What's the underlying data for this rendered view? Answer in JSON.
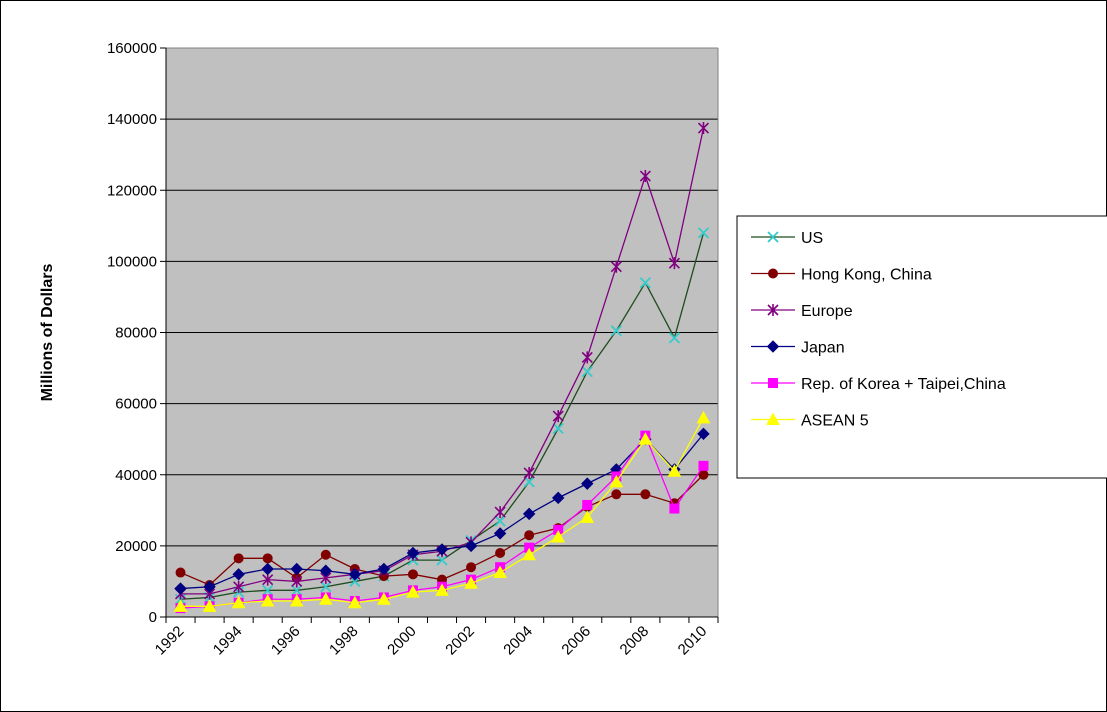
{
  "chart_data": {
    "type": "line",
    "title": "",
    "xlabel": "",
    "ylabel": "Millions of Dollars",
    "ylim": [
      0,
      160000
    ],
    "yticks": [
      0,
      20000,
      40000,
      60000,
      80000,
      100000,
      120000,
      140000,
      160000
    ],
    "x": [
      1992,
      1993,
      1994,
      1995,
      1996,
      1997,
      1998,
      1999,
      2000,
      2001,
      2002,
      2003,
      2004,
      2005,
      2006,
      2007,
      2008,
      2009,
      2010
    ],
    "xtick_labels": [
      "1992",
      "1994",
      "1996",
      "1998",
      "2000",
      "2002",
      "2004",
      "2006",
      "2008",
      "2010"
    ],
    "grid": "horizontal",
    "plot_background": "#c0c0c0",
    "legend_position": "right",
    "series": [
      {
        "name": "US",
        "line_color": "#1f4d1f",
        "marker_color": "#33cccc",
        "marker": "x",
        "values": [
          5000,
          5500,
          7000,
          7500,
          7500,
          8500,
          10000,
          11500,
          16000,
          16000,
          21500,
          27000,
          38000,
          53000,
          69000,
          80500,
          94000,
          78500,
          108000
        ]
      },
      {
        "name": "Hong Kong, China",
        "line_color": "#800000",
        "marker_color": "#800000",
        "marker": "circle",
        "values": [
          12500,
          9000,
          16500,
          16500,
          11000,
          17500,
          13500,
          11500,
          12000,
          10500,
          14000,
          18000,
          23000,
          25000,
          31000,
          34500,
          34500,
          32000,
          40000
        ]
      },
      {
        "name": "Europe",
        "line_color": "#800080",
        "marker_color": "#800080",
        "marker": "star",
        "values": [
          6500,
          6500,
          8500,
          10500,
          10000,
          11000,
          12000,
          13000,
          17500,
          18500,
          21000,
          29500,
          40500,
          56500,
          73000,
          98500,
          124000,
          99500,
          137500
        ]
      },
      {
        "name": "Japan",
        "line_color": "#000080",
        "marker_color": "#000080",
        "marker": "diamond",
        "values": [
          8000,
          8500,
          12000,
          13500,
          13500,
          13000,
          12000,
          13500,
          18000,
          19000,
          20000,
          23500,
          29000,
          33500,
          37500,
          41500,
          50000,
          41500,
          51500
        ]
      },
      {
        "name": "Rep. of Korea + Taipei,China",
        "line_color": "#ff00ff",
        "marker_color": "#ff00ff",
        "marker": "square",
        "values": [
          2500,
          3000,
          4000,
          5000,
          5000,
          5500,
          4500,
          5500,
          7500,
          8500,
          10500,
          14000,
          19500,
          24500,
          31500,
          39500,
          51000,
          30500,
          42500
        ]
      },
      {
        "name": "ASEAN 5",
        "line_color": "#ffff00",
        "marker_color": "#ffff00",
        "marker": "triangle",
        "values": [
          3000,
          3000,
          4000,
          4500,
          4500,
          5000,
          4000,
          5000,
          7000,
          7500,
          9500,
          12500,
          17500,
          22500,
          28000,
          38000,
          50000,
          41000,
          56000
        ]
      }
    ]
  }
}
